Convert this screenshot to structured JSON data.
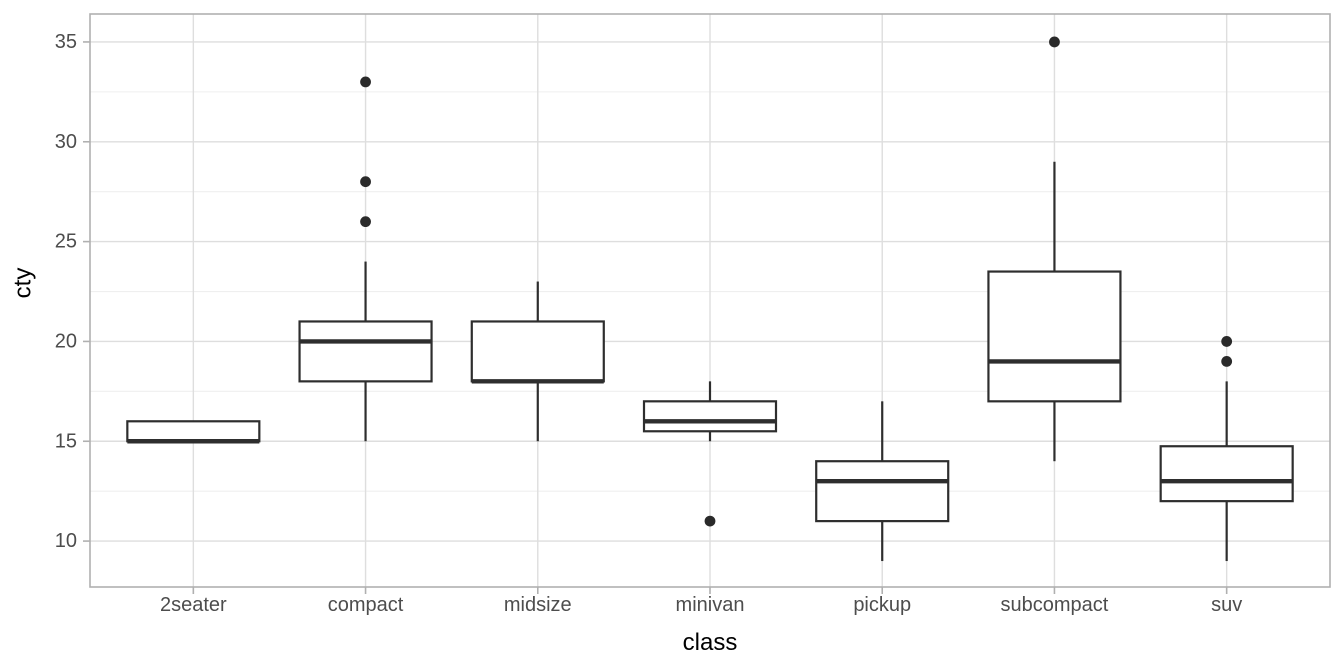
{
  "chart_data": {
    "type": "boxplot",
    "title": "",
    "xlabel": "class",
    "ylabel": "cty",
    "categories": [
      "2seater",
      "compact",
      "midsize",
      "minivan",
      "pickup",
      "subcompact",
      "suv"
    ],
    "y_ticks": [
      10,
      15,
      20,
      25,
      30,
      35
    ],
    "ylim": [
      7.7,
      36.4
    ],
    "grid": "major and minor horizontal, major vertical at categories",
    "legend": "none",
    "boxes": [
      {
        "category": "2seater",
        "whisker_low": 15,
        "q1": 15,
        "median": 15,
        "q3": 16,
        "whisker_high": 16,
        "outliers": []
      },
      {
        "category": "compact",
        "whisker_low": 15,
        "q1": 18,
        "median": 20,
        "q3": 21,
        "whisker_high": 24,
        "outliers": [
          26,
          28,
          33
        ]
      },
      {
        "category": "midsize",
        "whisker_low": 15,
        "q1": 18,
        "median": 18,
        "q3": 21,
        "whisker_high": 23,
        "outliers": []
      },
      {
        "category": "minivan",
        "whisker_low": 15,
        "q1": 15.5,
        "median": 16,
        "q3": 17,
        "whisker_high": 18,
        "outliers": [
          11
        ]
      },
      {
        "category": "pickup",
        "whisker_low": 9,
        "q1": 11,
        "median": 13,
        "q3": 14,
        "whisker_high": 17,
        "outliers": []
      },
      {
        "category": "subcompact",
        "whisker_low": 14,
        "q1": 17,
        "median": 19,
        "q3": 23.5,
        "whisker_high": 29,
        "outliers": [
          35
        ]
      },
      {
        "category": "suv",
        "whisker_low": 9,
        "q1": 12,
        "median": 13,
        "q3": 14.75,
        "whisker_high": 18,
        "outliers": [
          19,
          20
        ]
      }
    ],
    "colors": {
      "background": "#ffffff",
      "panel_border": "#b0b0b0",
      "grid_major": "#dedede",
      "grid_minor": "#efefef",
      "box_stroke": "#2e2e2e",
      "box_fill": "#ffffff",
      "outlier": "#2a2a2a",
      "tick_mark": "#b0b0b0",
      "tick_label": "#4d4d4d",
      "axis_title": "#000000"
    }
  }
}
